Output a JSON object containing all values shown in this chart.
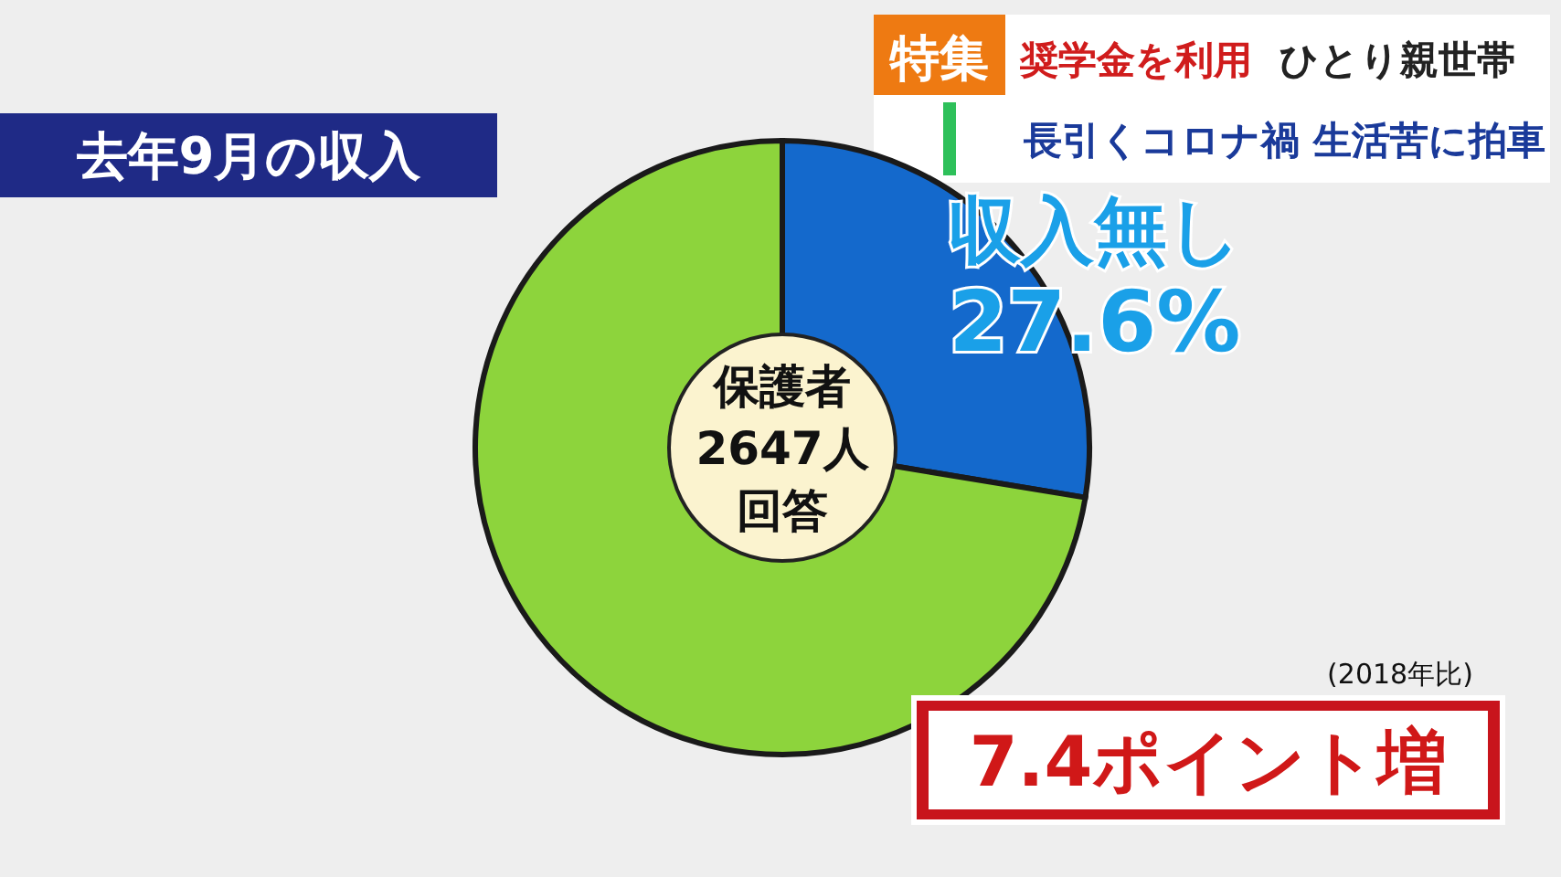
{
  "chart_data": {
    "type": "donut",
    "title": "去年9月の収入",
    "categories": [
      "収入無し",
      null
    ],
    "values": [
      27.6,
      72.4
    ],
    "colors": [
      "#1469cc",
      "#8dd43c"
    ],
    "value_labels": [
      "27.6%",
      null
    ],
    "annotations": [
      "特集",
      "奨学金を利用",
      "ひとり親世帯",
      "長引くコロナ禍 生活苦に拍車",
      "保護者",
      "(2018年比)",
      "7.4ポイント増",
      "2647人",
      "回答"
    ]
  }
}
